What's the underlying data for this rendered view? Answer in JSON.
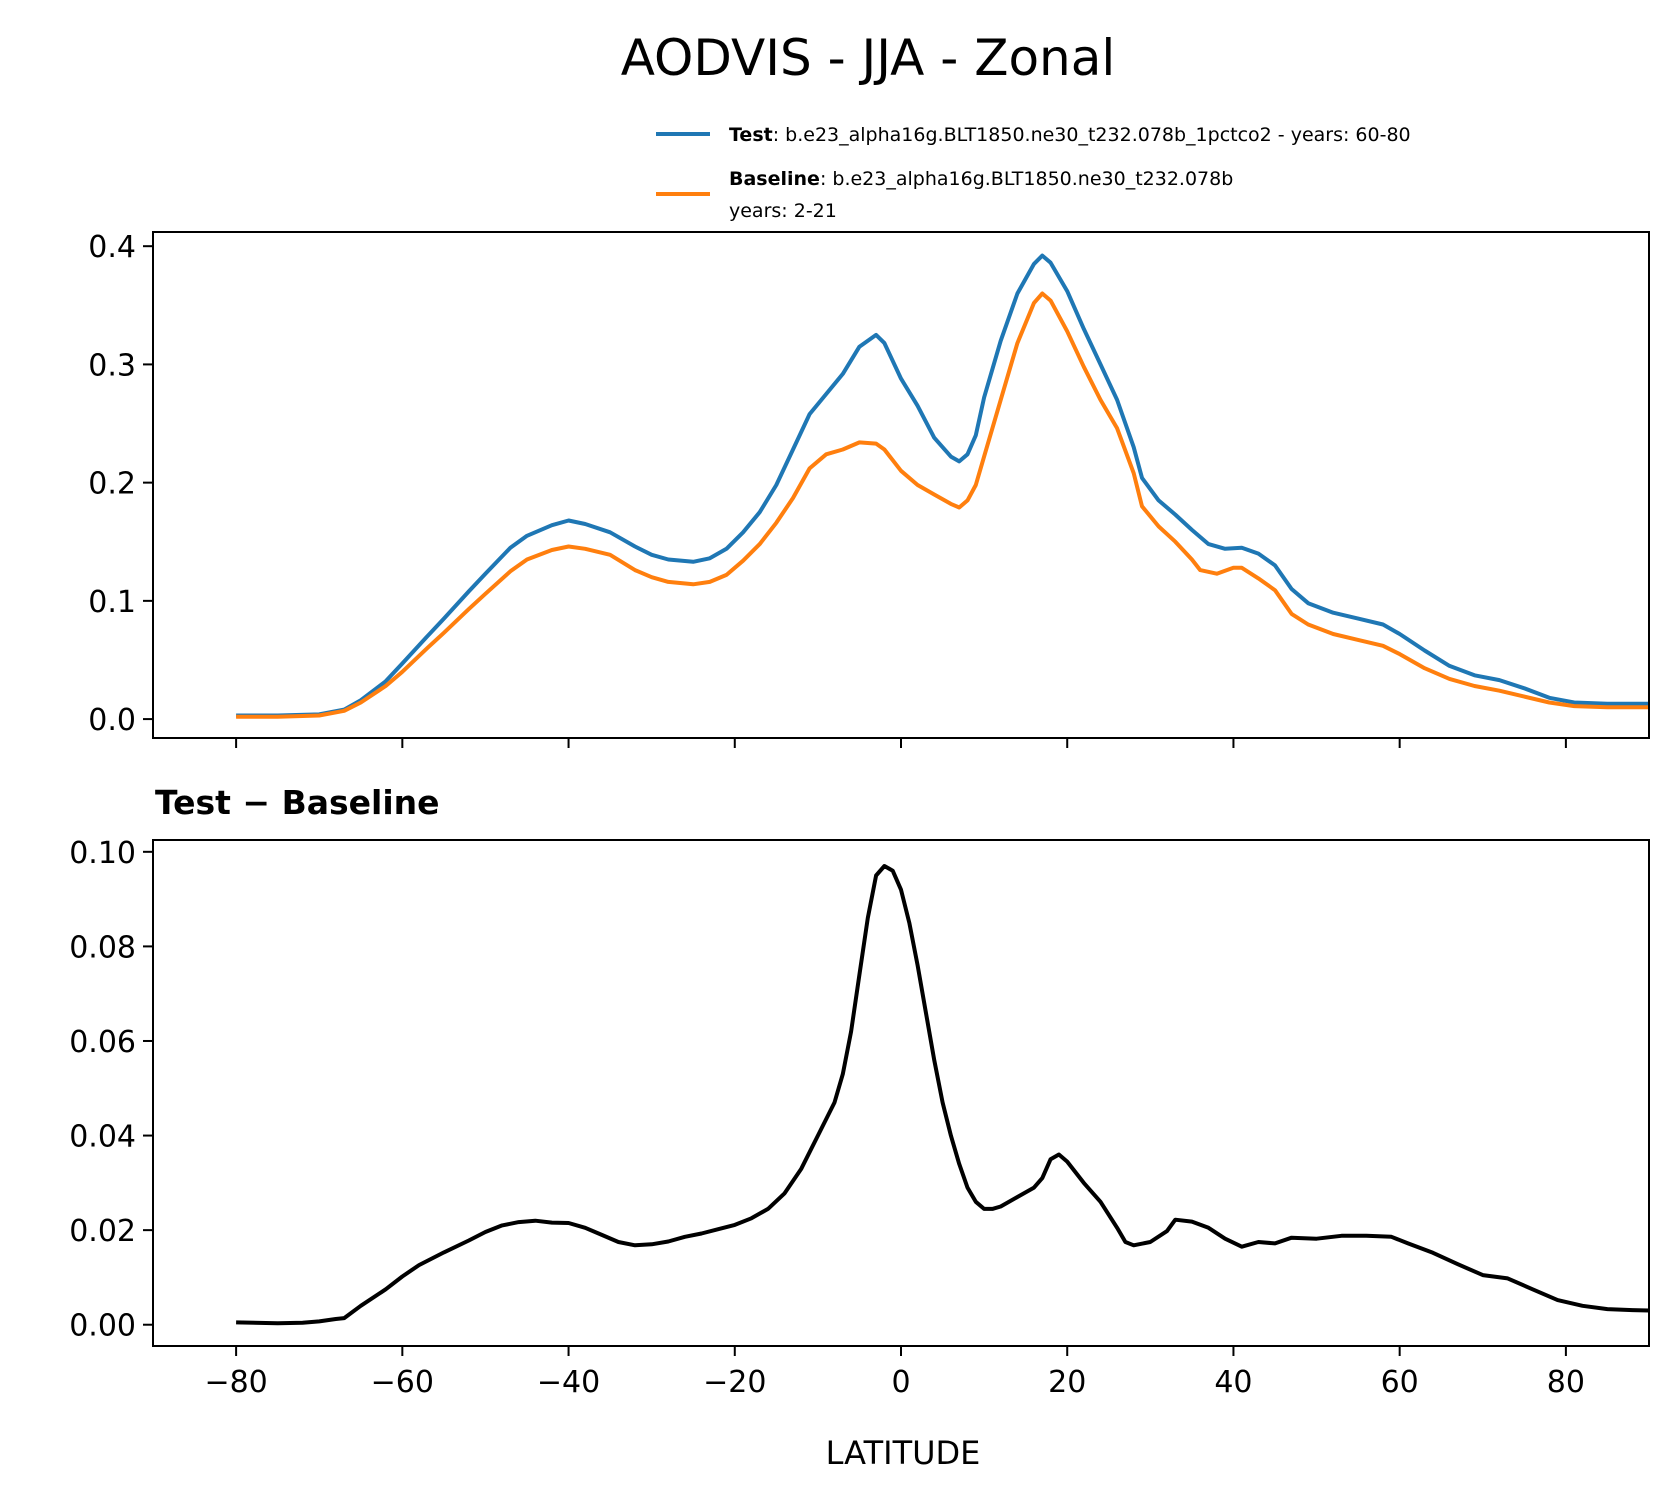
{
  "figure": {
    "title": "AODVIS - JJA - Zonal"
  },
  "colors": {
    "test": "#1f77b4",
    "baseline": "#ff7f0e",
    "difference": "#000000"
  },
  "legend": {
    "placement": "upper-right above top panel",
    "entries": [
      {
        "series": "test",
        "label_bold": "Test",
        "label_rest": ": b.e23_alpha16g.BLT1850.ne30_t232.078b_1pctco2 - years: 60-80",
        "label_line2": ""
      },
      {
        "series": "baseline",
        "label_bold": "Baseline",
        "label_rest": ": b.e23_alpha16g.BLT1850.ne30_t232.078b",
        "label_line2": "years: 2-21"
      }
    ]
  },
  "chart_data": [
    {
      "type": "line",
      "panel": "top",
      "title": "",
      "xlabel": "",
      "ylabel": "",
      "xlim": [
        -90,
        90
      ],
      "ylim": [
        -0.016,
        0.412
      ],
      "grid": false,
      "x_ticks": [
        -80,
        -60,
        -40,
        -20,
        0,
        20,
        40,
        60,
        80
      ],
      "x_tick_labels_shown": false,
      "y_ticks": [
        0.0,
        0.1,
        0.2,
        0.3,
        0.4
      ],
      "y_tick_labels": [
        "0.0",
        "0.1",
        "0.2",
        "0.3",
        "0.4"
      ],
      "series": [
        {
          "name": "Test",
          "color_key": "test",
          "points": [
            [
              -80,
              0.003
            ],
            [
              -75,
              0.003
            ],
            [
              -70,
              0.004
            ],
            [
              -67,
              0.008
            ],
            [
              -65,
              0.016
            ],
            [
              -62,
              0.032
            ],
            [
              -60,
              0.047
            ],
            [
              -57,
              0.07
            ],
            [
              -55,
              0.085
            ],
            [
              -52,
              0.108
            ],
            [
              -50,
              0.123
            ],
            [
              -47,
              0.145
            ],
            [
              -45,
              0.155
            ],
            [
              -42,
              0.164
            ],
            [
              -40,
              0.168
            ],
            [
              -38,
              0.165
            ],
            [
              -35,
              0.158
            ],
            [
              -32,
              0.146
            ],
            [
              -30,
              0.139
            ],
            [
              -28,
              0.135
            ],
            [
              -25,
              0.133
            ],
            [
              -23,
              0.136
            ],
            [
              -21,
              0.144
            ],
            [
              -19,
              0.158
            ],
            [
              -17,
              0.175
            ],
            [
              -15,
              0.198
            ],
            [
              -13,
              0.228
            ],
            [
              -11,
              0.258
            ],
            [
              -9,
              0.275
            ],
            [
              -7,
              0.292
            ],
            [
              -5,
              0.315
            ],
            [
              -3,
              0.325
            ],
            [
              -2,
              0.318
            ],
            [
              0,
              0.288
            ],
            [
              2,
              0.265
            ],
            [
              4,
              0.238
            ],
            [
              6,
              0.222
            ],
            [
              7,
              0.218
            ],
            [
              8,
              0.224
            ],
            [
              9,
              0.24
            ],
            [
              10,
              0.272
            ],
            [
              12,
              0.32
            ],
            [
              14,
              0.36
            ],
            [
              16,
              0.385
            ],
            [
              17,
              0.392
            ],
            [
              18,
              0.386
            ],
            [
              20,
              0.362
            ],
            [
              22,
              0.33
            ],
            [
              24,
              0.3
            ],
            [
              26,
              0.27
            ],
            [
              28,
              0.23
            ],
            [
              29,
              0.204
            ],
            [
              31,
              0.185
            ],
            [
              33,
              0.173
            ],
            [
              35,
              0.16
            ],
            [
              37,
              0.148
            ],
            [
              39,
              0.144
            ],
            [
              41,
              0.145
            ],
            [
              43,
              0.14
            ],
            [
              45,
              0.13
            ],
            [
              47,
              0.11
            ],
            [
              49,
              0.098
            ],
            [
              52,
              0.09
            ],
            [
              55,
              0.085
            ],
            [
              58,
              0.08
            ],
            [
              60,
              0.072
            ],
            [
              63,
              0.058
            ],
            [
              66,
              0.045
            ],
            [
              69,
              0.037
            ],
            [
              72,
              0.033
            ],
            [
              75,
              0.026
            ],
            [
              78,
              0.018
            ],
            [
              81,
              0.014
            ],
            [
              85,
              0.013
            ],
            [
              90,
              0.013
            ]
          ]
        },
        {
          "name": "Baseline",
          "color_key": "baseline",
          "points": [
            [
              -80,
              0.002
            ],
            [
              -75,
              0.002
            ],
            [
              -70,
              0.003
            ],
            [
              -67,
              0.007
            ],
            [
              -65,
              0.014
            ],
            [
              -62,
              0.028
            ],
            [
              -60,
              0.04
            ],
            [
              -57,
              0.06
            ],
            [
              -55,
              0.073
            ],
            [
              -52,
              0.093
            ],
            [
              -50,
              0.106
            ],
            [
              -47,
              0.125
            ],
            [
              -45,
              0.135
            ],
            [
              -42,
              0.143
            ],
            [
              -40,
              0.146
            ],
            [
              -38,
              0.144
            ],
            [
              -35,
              0.139
            ],
            [
              -32,
              0.126
            ],
            [
              -30,
              0.12
            ],
            [
              -28,
              0.116
            ],
            [
              -25,
              0.114
            ],
            [
              -23,
              0.116
            ],
            [
              -21,
              0.122
            ],
            [
              -19,
              0.134
            ],
            [
              -17,
              0.148
            ],
            [
              -15,
              0.166
            ],
            [
              -13,
              0.187
            ],
            [
              -11,
              0.212
            ],
            [
              -9,
              0.224
            ],
            [
              -7,
              0.228
            ],
            [
              -5,
              0.234
            ],
            [
              -3,
              0.233
            ],
            [
              -2,
              0.228
            ],
            [
              0,
              0.21
            ],
            [
              2,
              0.198
            ],
            [
              4,
              0.19
            ],
            [
              6,
              0.182
            ],
            [
              7,
              0.179
            ],
            [
              8,
              0.185
            ],
            [
              9,
              0.198
            ],
            [
              10,
              0.222
            ],
            [
              12,
              0.27
            ],
            [
              14,
              0.318
            ],
            [
              16,
              0.352
            ],
            [
              17,
              0.36
            ],
            [
              18,
              0.354
            ],
            [
              20,
              0.328
            ],
            [
              22,
              0.298
            ],
            [
              24,
              0.27
            ],
            [
              26,
              0.246
            ],
            [
              28,
              0.208
            ],
            [
              29,
              0.18
            ],
            [
              31,
              0.163
            ],
            [
              33,
              0.15
            ],
            [
              35,
              0.135
            ],
            [
              36,
              0.126
            ],
            [
              38,
              0.123
            ],
            [
              40,
              0.128
            ],
            [
              41,
              0.128
            ],
            [
              43,
              0.119
            ],
            [
              45,
              0.109
            ],
            [
              47,
              0.089
            ],
            [
              49,
              0.08
            ],
            [
              52,
              0.072
            ],
            [
              55,
              0.067
            ],
            [
              58,
              0.062
            ],
            [
              60,
              0.055
            ],
            [
              63,
              0.043
            ],
            [
              66,
              0.034
            ],
            [
              69,
              0.028
            ],
            [
              72,
              0.024
            ],
            [
              75,
              0.019
            ],
            [
              78,
              0.014
            ],
            [
              81,
              0.011
            ],
            [
              85,
              0.01
            ],
            [
              90,
              0.01
            ]
          ]
        }
      ]
    },
    {
      "type": "line",
      "panel": "bottom",
      "title_bold_left": "Test",
      "title_bold_right": "Baseline",
      "xlabel": "LATITUDE",
      "ylabel": "",
      "xlim": [
        -90,
        90
      ],
      "ylim": [
        -0.0045,
        0.1025
      ],
      "grid": false,
      "x_ticks": [
        -80,
        -60,
        -40,
        -20,
        0,
        20,
        40,
        60,
        80
      ],
      "x_tick_labels": [
        "−80",
        "−60",
        "−40",
        "−20",
        "0",
        "20",
        "40",
        "60",
        "80"
      ],
      "y_ticks": [
        0.0,
        0.02,
        0.04,
        0.06,
        0.08,
        0.1
      ],
      "y_tick_labels": [
        "0.00",
        "0.02",
        "0.04",
        "0.06",
        "0.08",
        "0.10"
      ],
      "series": [
        {
          "name": "Test − Baseline",
          "color_key": "difference",
          "points": [
            [
              -80,
              0.0005
            ],
            [
              -75,
              0.0003
            ],
            [
              -72,
              0.0004
            ],
            [
              -70,
              0.0007
            ],
            [
              -68,
              0.0012
            ],
            [
              -67,
              0.0014
            ],
            [
              -65,
              0.004
            ],
            [
              -62,
              0.0075
            ],
            [
              -60,
              0.0102
            ],
            [
              -58,
              0.0126
            ],
            [
              -55,
              0.0153
            ],
            [
              -52,
              0.0178
            ],
            [
              -50,
              0.0196
            ],
            [
              -48,
              0.021
            ],
            [
              -46,
              0.0217
            ],
            [
              -44,
              0.022
            ],
            [
              -42,
              0.0216
            ],
            [
              -40,
              0.0215
            ],
            [
              -38,
              0.0205
            ],
            [
              -36,
              0.019
            ],
            [
              -34,
              0.0175
            ],
            [
              -32,
              0.0168
            ],
            [
              -30,
              0.017
            ],
            [
              -28,
              0.0176
            ],
            [
              -26,
              0.0186
            ],
            [
              -24,
              0.0193
            ],
            [
              -22,
              0.0202
            ],
            [
              -20,
              0.0211
            ],
            [
              -18,
              0.0225
            ],
            [
              -16,
              0.0245
            ],
            [
              -14,
              0.0278
            ],
            [
              -12,
              0.033
            ],
            [
              -10,
              0.04
            ],
            [
              -8,
              0.047
            ],
            [
              -7,
              0.053
            ],
            [
              -6,
              0.062
            ],
            [
              -5,
              0.074
            ],
            [
              -4,
              0.086
            ],
            [
              -3,
              0.095
            ],
            [
              -2,
              0.097
            ],
            [
              -1,
              0.096
            ],
            [
              0,
              0.092
            ],
            [
              1,
              0.085
            ],
            [
              2,
              0.076
            ],
            [
              3,
              0.066
            ],
            [
              4,
              0.056
            ],
            [
              5,
              0.047
            ],
            [
              6,
              0.04
            ],
            [
              7,
              0.034
            ],
            [
              8,
              0.029
            ],
            [
              9,
              0.026
            ],
            [
              10,
              0.0245
            ],
            [
              11,
              0.0245
            ],
            [
              12,
              0.025
            ],
            [
              14,
              0.027
            ],
            [
              16,
              0.029
            ],
            [
              17,
              0.031
            ],
            [
              18,
              0.035
            ],
            [
              19,
              0.036
            ],
            [
              20,
              0.0345
            ],
            [
              22,
              0.03
            ],
            [
              24,
              0.026
            ],
            [
              26,
              0.0205
            ],
            [
              27,
              0.0175
            ],
            [
              28,
              0.0168
            ],
            [
              30,
              0.0175
            ],
            [
              32,
              0.0198
            ],
            [
              33,
              0.0222
            ],
            [
              35,
              0.0218
            ],
            [
              37,
              0.0205
            ],
            [
              39,
              0.0182
            ],
            [
              41,
              0.0165
            ],
            [
              43,
              0.0175
            ],
            [
              45,
              0.0172
            ],
            [
              47,
              0.0184
            ],
            [
              50,
              0.0182
            ],
            [
              53,
              0.0188
            ],
            [
              56,
              0.0188
            ],
            [
              59,
              0.0186
            ],
            [
              61,
              0.0172
            ],
            [
              64,
              0.0152
            ],
            [
              67,
              0.0128
            ],
            [
              70,
              0.0105
            ],
            [
              73,
              0.0098
            ],
            [
              76,
              0.0075
            ],
            [
              79,
              0.0052
            ],
            [
              82,
              0.004
            ],
            [
              85,
              0.0033
            ],
            [
              88,
              0.0031
            ],
            [
              90,
              0.003
            ]
          ]
        }
      ]
    }
  ]
}
